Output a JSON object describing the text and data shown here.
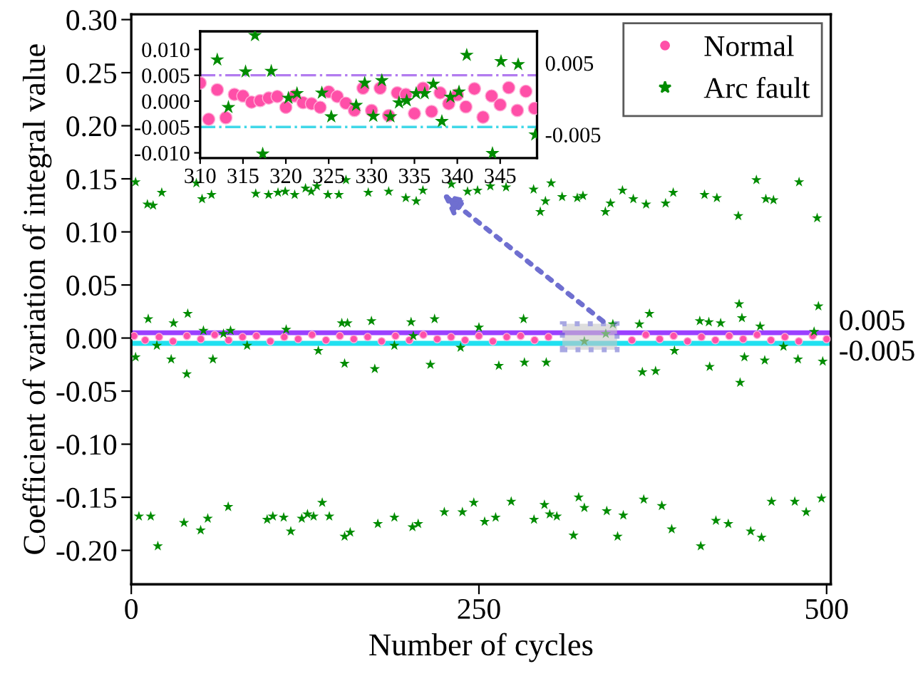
{
  "chart_data": [
    {
      "type": "scatter",
      "xlabel": "Number of cycles",
      "ylabel": "Coefficient of variation of integral value",
      "xlim": [
        0,
        503
      ],
      "xticks": [
        0,
        250,
        500
      ],
      "ylim": [
        -0.232,
        0.305
      ],
      "yticks": [
        {
          "value": -0.2,
          "label": "-0.20"
        },
        {
          "value": -0.15,
          "label": "-0.15"
        },
        {
          "value": -0.1,
          "label": "-0.10"
        },
        {
          "value": -0.05,
          "label": "-0.05"
        },
        {
          "value": 0,
          "label": "0.00"
        },
        {
          "value": 0.05,
          "label": "0.05"
        },
        {
          "value": 0.1,
          "label": "0.10"
        },
        {
          "value": 0.15,
          "label": "0.15"
        },
        {
          "value": 0.2,
          "label": "0.20"
        },
        {
          "value": 0.25,
          "label": "0.25"
        },
        {
          "value": 0.3,
          "label": "0.30"
        }
      ],
      "grid": false,
      "legend": "top right",
      "ref_lines": [
        {
          "axis": "y",
          "value": 0.005,
          "label": "0.005",
          "color": "#9b40ff",
          "line_style": "solid"
        },
        {
          "axis": "y",
          "value": -0.005,
          "label": "-0.005",
          "color": "#20e0f0",
          "line_style": "solid"
        }
      ],
      "series": [
        {
          "name": "Normal",
          "color": "#ff4fa8",
          "marker": "circle",
          "x": [
            2,
            10,
            20,
            30,
            40,
            50,
            60,
            70,
            80,
            90,
            100,
            110,
            120,
            130,
            140,
            150,
            160,
            170,
            180,
            190,
            200,
            210,
            220,
            230,
            240,
            250,
            260,
            270,
            280,
            290,
            300,
            360,
            370,
            380,
            390,
            400,
            410,
            420,
            430,
            440,
            450,
            460,
            470,
            480,
            490,
            500
          ],
          "values": [
            0.002,
            -0.002,
            0.001,
            -0.003,
            0.002,
            -0.001,
            0.003,
            -0.002,
            0.001,
            0.002,
            -0.003,
            0.001,
            -0.001,
            0.003,
            -0.002,
            0.002,
            -0.001,
            0.001,
            -0.003,
            0.002,
            -0.002,
            0.003,
            -0.001,
            0.001,
            -0.002,
            0.002,
            -0.003,
            0.001,
            0.002,
            -0.002,
            0.001,
            -0.002,
            0.003,
            -0.001,
            0.002,
            -0.003,
            0.001,
            -0.002,
            0.002,
            -0.001,
            0.003,
            -0.002,
            0.001,
            -0.003,
            0.002,
            -0.001
          ]
        },
        {
          "name": "Arc fault",
          "color": "#008c00",
          "marker": "star",
          "x": [
            3.1,
            11.6,
            15.7,
            21.9,
            46.8,
            50.9,
            57.7,
            89.5,
            98.7,
            105.5,
            110.7,
            117.5,
            125.3,
            129.4,
            133.5,
            141.4,
            149.3,
            154.4,
            170.4,
            185.1,
            197.4,
            204.9,
            209.7,
            230.2,
            241.8,
            249,
            258.2,
            269.5,
            289.3,
            294.1,
            297.8,
            301.9,
            309.8,
            320.7,
            324.8,
            340.9,
            344.6,
            353.2,
            361.0,
            370.2,
            384.2,
            389.7,
            412.2,
            421.1,
            436.5,
            449.5,
            456.3,
            461.8,
            480.2,
            493.2,
            5.5,
            14.0,
            19.1,
            37.9,
            49.9,
            55.0,
            69.7,
            97.7,
            101.8,
            109.6,
            114.7,
            122.6,
            126.7,
            131.1,
            137.3,
            142.4,
            153.4,
            157.4,
            177.3,
            189.2,
            202.2,
            206.3,
            225.1,
            238.1,
            246.3,
            254.1,
            262.0,
            273.2,
            289.6,
            297.1,
            300.9,
            306.0,
            318.0,
            321.7,
            325.8,
            341.9,
            349.7,
            353.8,
            368.5,
            381.5,
            388.6,
            409.5,
            420.4,
            429.3,
            445.4,
            453.2,
            460.4,
            477.1,
            485.3,
            496.3,
            12.2,
            40.6,
            30.4,
            39.9,
            3.1,
            28.7,
            58.7,
            51.9,
            71.4,
            111.4,
            151.4,
            155.5,
            153.4,
            172.7,
            175.1,
            201.2,
            218.1,
            215.1,
            250,
            264.3,
            282.1,
            282.7,
            298.4,
            346.3,
            365.4,
            372.6,
            367.5,
            377,
            408.8,
            415.3,
            423.8,
            415.9,
            437.1,
            439.1,
            437.8,
            440.9,
            452.2,
            455.5,
            479.4,
            494.1,
            497.2,
            491,
            18.4,
            83.3,
            134.5,
            189.2,
            236.8,
            325.8,
            390.6,
            469,
            66.3,
            202.8,
            341.2
          ],
          "values": [
            0.147,
            0.126,
            0.125,
            0.137,
            0.146,
            0.131,
            0.135,
            0.136,
            0.135,
            0.137,
            0.138,
            0.135,
            0.141,
            0.138,
            0.143,
            0.135,
            0.135,
            0.149,
            0.137,
            0.138,
            0.132,
            0.129,
            0.139,
            0.145,
            0.138,
            0.139,
            0.143,
            0.142,
            0.14,
            0.119,
            0.129,
            0.146,
            0.133,
            0.132,
            0.134,
            0.119,
            0.127,
            0.139,
            0.131,
            0.126,
            0.127,
            0.137,
            0.135,
            0.132,
            0.115,
            0.149,
            0.131,
            0.13,
            0.147,
            0.113,
            -0.168,
            -0.168,
            -0.196,
            -0.174,
            -0.181,
            -0.17,
            -0.159,
            -0.171,
            -0.168,
            -0.169,
            -0.182,
            -0.17,
            -0.166,
            -0.168,
            -0.155,
            -0.168,
            -0.187,
            -0.183,
            -0.175,
            -0.169,
            -0.178,
            -0.175,
            -0.164,
            -0.164,
            -0.155,
            -0.173,
            -0.169,
            -0.154,
            -0.171,
            -0.157,
            -0.166,
            -0.168,
            -0.186,
            -0.15,
            -0.16,
            -0.163,
            -0.187,
            -0.167,
            -0.152,
            -0.158,
            -0.18,
            -0.196,
            -0.172,
            -0.175,
            -0.182,
            -0.188,
            -0.154,
            -0.154,
            -0.164,
            -0.151,
            0.018,
            0.023,
            0.014,
            -0.034,
            -0.018,
            -0.02,
            -0.02,
            0.007,
            0.007,
            0.008,
            0.014,
            0.014,
            -0.024,
            0.016,
            -0.029,
            0.015,
            0.018,
            -0.025,
            0.01,
            -0.026,
            0.018,
            -0.023,
            -0.023,
            0.013,
            0.013,
            0.023,
            -0.032,
            -0.031,
            0.016,
            0.015,
            0.014,
            -0.027,
            0.032,
            0.019,
            -0.042,
            -0.018,
            0.011,
            -0.021,
            -0.02,
            0.03,
            -0.022,
            0.006,
            -0.007,
            -0.007,
            -0.012,
            -0.007,
            -0.009,
            -0.003,
            -0.012,
            -0.008,
            0.004,
            0.002,
            0.004
          ]
        }
      ]
    },
    {
      "type": "scatter",
      "xlim": [
        310,
        349.3
      ],
      "xticks": [
        310,
        315,
        320,
        325,
        330,
        335,
        340,
        345
      ],
      "ylim": [
        -0.011,
        0.0135
      ],
      "yticks": [
        {
          "value": -0.01,
          "label": "-0.010"
        },
        {
          "value": -0.005,
          "label": "-0.005"
        },
        {
          "value": 0,
          "label": "0.000"
        },
        {
          "value": 0.005,
          "label": "0.005"
        },
        {
          "value": 0.01,
          "label": "0.010"
        }
      ],
      "grid": false,
      "legend": false,
      "ref_lines": [
        {
          "axis": "y",
          "value": 0.005,
          "label": "0.005",
          "color": "#b27bf0",
          "line_style": "dashdot"
        },
        {
          "axis": "y",
          "value": -0.005,
          "label": "-0.005",
          "color": "#40d8e8",
          "line_style": "dashdot"
        }
      ],
      "series": [
        {
          "color": "#ff4fa8",
          "marker": "circle",
          "x": [
            310,
            311,
            312,
            313,
            314,
            315,
            316,
            317,
            318,
            319,
            320,
            321,
            322,
            323,
            324,
            325,
            326,
            327,
            328,
            329,
            330,
            331,
            332,
            333,
            334,
            335,
            336,
            337,
            338,
            339,
            340,
            341,
            342,
            343,
            344,
            345,
            346,
            347,
            348,
            349
          ],
          "values": [
            0.0035,
            -0.0035,
            0.0022,
            -0.0032,
            0.0013,
            0.001,
            -0.0002,
            0.0001,
            0.0006,
            0.0009,
            -0.0012,
            0.001,
            -0.0003,
            -0.0005,
            -0.0012,
            0.0018,
            0.0009,
            -0.0004,
            -0.0018,
            0.0025,
            -0.0018,
            0.0025,
            -0.0028,
            0.0016,
            0.0013,
            -0.0024,
            0.0025,
            -0.002,
            0.0016,
            -0.0005,
            0.0012,
            -0.0011,
            0.0024,
            -0.0031,
            0.001,
            -0.0007,
            0.0026,
            -0.0018,
            0.0019,
            -0.0014
          ]
        },
        {
          "color": "#008c00",
          "marker": "star",
          "x": [
            312,
            313.3,
            315.3,
            316.4,
            317.3,
            318.3,
            320.3,
            321.3,
            324.2,
            325.3,
            328.2,
            329.2,
            330.2,
            331.2,
            332.2,
            333.2,
            334.1,
            335.2,
            336.2,
            337.2,
            338.2,
            339.2,
            340.2,
            341.1,
            344.1,
            345.1,
            347.1,
            349.1
          ],
          "values": [
            0.008,
            -0.0012,
            0.0057,
            0.0127,
            -0.0102,
            0.0058,
            0.0006,
            0.0015,
            0.0016,
            -0.003,
            -0.0008,
            0.0035,
            -0.0029,
            0.004,
            -0.003,
            -0.0003,
            0.0001,
            0.0015,
            0.0015,
            0.0033,
            -0.0039,
            0.0008,
            0.0018,
            0.0089,
            -0.0101,
            0.0077,
            0.0071,
            -0.0065
          ]
        }
      ]
    }
  ]
}
